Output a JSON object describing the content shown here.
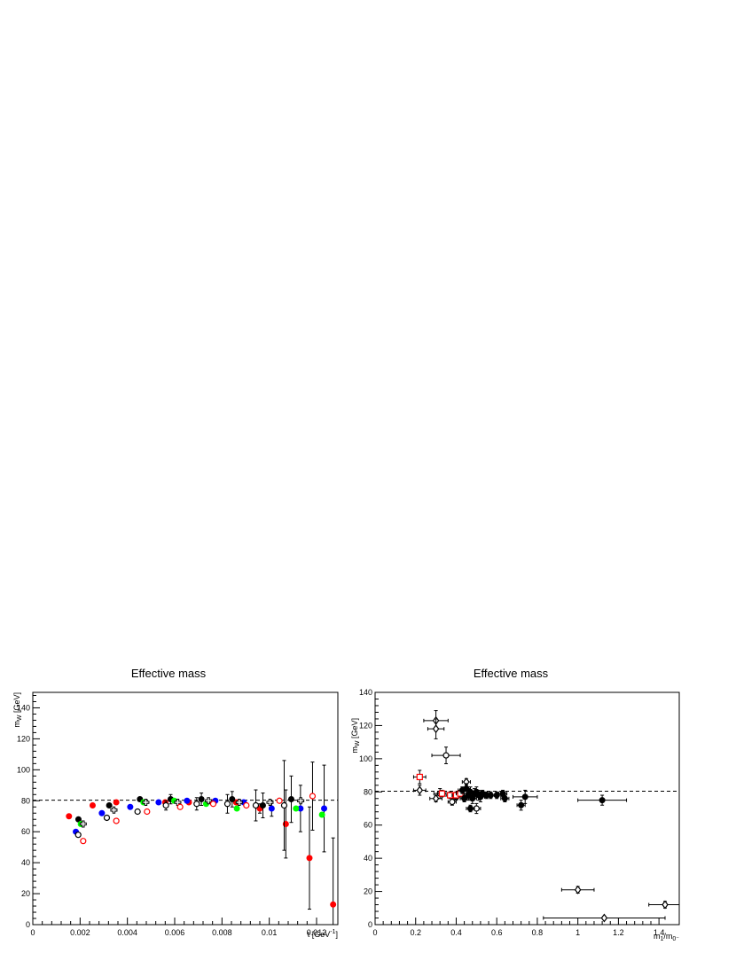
{
  "chart_data": [
    {
      "type": "scatter",
      "title": "Effective mass",
      "xlabel": "t [GeV⁻¹]",
      "ylabel": "mₙ [GeV]",
      "ylabel_main": "m",
      "ylabel_sub": "W",
      "ylabel_unit": " [GeV]",
      "xlabel_main": "t [GeV",
      "xlabel_sup": "-1",
      "xlabel_close": "]",
      "xlim": [
        0,
        0.0129
      ],
      "ylim": [
        0,
        150
      ],
      "xticks": [
        0,
        0.002,
        0.004,
        0.006,
        0.008,
        0.01,
        0.012
      ],
      "xtick_labels": [
        "0",
        "0.002",
        "0.004",
        "0.006",
        "0.008",
        "0.01",
        "0.012"
      ],
      "yticks": [
        0,
        20,
        40,
        60,
        80,
        100,
        120,
        140
      ],
      "ytick_labels": [
        "0",
        "20",
        "40",
        "60",
        "80",
        "100",
        "120",
        "140"
      ],
      "reference_line": 80.4,
      "grid": false,
      "series": [
        {
          "color": "#ff0000",
          "marker": "filled-circle",
          "points": [
            [
              0.00153,
              70,
              0
            ],
            [
              0.00253,
              77,
              0
            ],
            [
              0.00353,
              79,
              0
            ],
            [
              0.0056,
              79,
              0
            ],
            [
              0.0066,
              79,
              0
            ],
            [
              0.0076,
              79,
              0
            ],
            [
              0.0086,
              79,
              0
            ],
            [
              0.0096,
              75,
              3
            ],
            [
              0.0107,
              65,
              22
            ],
            [
              0.0117,
              43,
              33
            ],
            [
              0.0127,
              13,
              43
            ]
          ]
        },
        {
          "color": "#0000ff",
          "marker": "filled-circle",
          "points": [
            [
              0.00182,
              60,
              0
            ],
            [
              0.00292,
              72,
              0
            ],
            [
              0.00412,
              76,
              0
            ],
            [
              0.00532,
              79,
              0
            ],
            [
              0.00652,
              80,
              0
            ],
            [
              0.00772,
              80,
              0
            ],
            [
              0.00892,
              79,
              0
            ],
            [
              0.0101,
              75,
              5
            ],
            [
              0.01132,
              75,
              15
            ],
            [
              0.01232,
              75,
              28
            ]
          ]
        },
        {
          "color": "#000000",
          "marker": "filled-circle",
          "points": [
            [
              0.00193,
              68,
              0
            ],
            [
              0.00323,
              77,
              0
            ],
            [
              0.00453,
              81,
              0
            ],
            [
              0.00583,
              81,
              3
            ],
            [
              0.00713,
              81,
              4
            ],
            [
              0.00843,
              81,
              5
            ],
            [
              0.00973,
              77,
              8
            ],
            [
              0.01093,
              81,
              15
            ]
          ]
        },
        {
          "color": "#00ff00",
          "marker": "filled-circle",
          "points": [
            [
              0.00203,
              65,
              0
            ],
            [
              0.00468,
              79,
              0
            ],
            [
              0.00598,
              80,
              0
            ],
            [
              0.00733,
              78,
              0
            ],
            [
              0.00863,
              75,
              0
            ],
            [
              0.01113,
              75,
              0
            ],
            [
              0.01223,
              71,
              0
            ]
          ]
        },
        {
          "color": "#000000",
          "marker": "open-cross",
          "points": [
            [
              0.00213,
              65,
              0
            ],
            [
              0.00343,
              74,
              0
            ],
            [
              0.00478,
              79,
              0
            ],
            [
              0.00613,
              79,
              0
            ],
            [
              0.00743,
              80,
              0
            ],
            [
              0.00873,
              79,
              0
            ],
            [
              0.01003,
              79,
              0
            ],
            [
              0.01133,
              80,
              0
            ]
          ]
        },
        {
          "color": "#000000",
          "marker": "open-circle",
          "points": [
            [
              0.00192,
              58,
              0
            ],
            [
              0.00313,
              69,
              0
            ],
            [
              0.00443,
              73,
              0
            ],
            [
              0.00563,
              77,
              3
            ],
            [
              0.00693,
              78,
              4
            ],
            [
              0.00823,
              78,
              6
            ],
            [
              0.00943,
              77,
              10
            ],
            [
              0.01063,
              77,
              29
            ]
          ]
        },
        {
          "color": "#ff0000",
          "marker": "open-circle",
          "points": [
            [
              0.00213,
              54,
              0
            ],
            [
              0.00353,
              67,
              0
            ],
            [
              0.00483,
              73,
              0
            ],
            [
              0.00623,
              76,
              0
            ],
            [
              0.00763,
              78,
              0
            ],
            [
              0.00903,
              77,
              0
            ],
            [
              0.01043,
              80,
              0
            ],
            [
              0.01183,
              83,
              22
            ]
          ]
        }
      ]
    },
    {
      "type": "scatter",
      "title": "Effective mass",
      "xlabel": "m₁/m₀",
      "ylabel": "mₙ [GeV]",
      "ylabel_main": "m",
      "ylabel_sub": "W",
      "ylabel_unit": " [GeV]",
      "xlabel_main": "m",
      "xlabel_sub1": "1",
      "xlabel_slash": "/m",
      "xlabel_sub2": "0⁻",
      "xlim": [
        0,
        1.5
      ],
      "ylim": [
        0,
        140
      ],
      "xticks": [
        0,
        0.2,
        0.4,
        0.6,
        0.8,
        1,
        1.2,
        1.4
      ],
      "xtick_labels": [
        "0",
        "0.2",
        "0.4",
        "0.6",
        "0.8",
        "1",
        "1.2",
        "1.4"
      ],
      "yticks": [
        0,
        20,
        40,
        60,
        80,
        100,
        120,
        140
      ],
      "ytick_labels": [
        "0",
        "20",
        "40",
        "60",
        "80",
        "100",
        "120",
        "140"
      ],
      "reference_line": 80.4,
      "grid": false,
      "series": [
        {
          "color": "#000000",
          "marker": "open-diamond",
          "points": [
            [
              0.3,
              123,
              0.06,
              6
            ],
            [
              0.3,
              118,
              0.04,
              6
            ],
            [
              0.22,
              81,
              0.03,
              3
            ],
            [
              0.3,
              76,
              0.03,
              2
            ],
            [
              0.45,
              86,
              0.02,
              2
            ],
            [
              1.0,
              21,
              0.08,
              2
            ],
            [
              1.13,
              4,
              0.3,
              1
            ],
            [
              1.43,
              12,
              0.08,
              2
            ]
          ]
        },
        {
          "color": "#000000",
          "marker": "open-circle",
          "points": [
            [
              0.35,
              102,
              0.07,
              5
            ],
            [
              0.32,
              79,
              0.03,
              3
            ],
            [
              0.4,
              77,
              0.02,
              2
            ],
            [
              0.5,
              70,
              0.02,
              3
            ],
            [
              0.38,
              74,
              0.02,
              2
            ]
          ]
        },
        {
          "color": "#ff0000",
          "marker": "open-square",
          "points": [
            [
              0.22,
              89,
              0.03,
              4
            ],
            [
              0.33,
              79,
              0.02,
              2
            ],
            [
              0.37,
              78,
              0.02,
              2
            ],
            [
              0.4,
              78,
              0.02,
              2
            ],
            [
              0.42,
              79,
              0.02,
              2
            ]
          ]
        },
        {
          "color": "#000000",
          "marker": "filled-circle",
          "points": [
            [
              0.45,
              82,
              0.02,
              3
            ],
            [
              0.46,
              78,
              0.02,
              3
            ],
            [
              0.47,
              80,
              0.02,
              3
            ],
            [
              0.48,
              76,
              0.02,
              3
            ],
            [
              0.49,
              79,
              0.02,
              3
            ],
            [
              0.5,
              80,
              0.02,
              3
            ],
            [
              0.51,
              78,
              0.02,
              3
            ],
            [
              0.52,
              77,
              0.02,
              3
            ],
            [
              0.53,
              79,
              0.02,
              2
            ],
            [
              0.55,
              78,
              0.02,
              2
            ],
            [
              0.57,
              78,
              0.02,
              2
            ],
            [
              0.6,
              78,
              0.02,
              2
            ],
            [
              0.63,
              79,
              0.02,
              2
            ],
            [
              0.64,
              76,
              0.02,
              2
            ],
            [
              0.47,
              70,
              0.02,
              2
            ],
            [
              0.43,
              81,
              0.02,
              2
            ],
            [
              0.44,
              76,
              0.02,
              2
            ],
            [
              0.72,
              72,
              0.02,
              3
            ],
            [
              0.74,
              77,
              0.06,
              4
            ],
            [
              1.12,
              75,
              0.12,
              3
            ]
          ]
        }
      ]
    }
  ]
}
